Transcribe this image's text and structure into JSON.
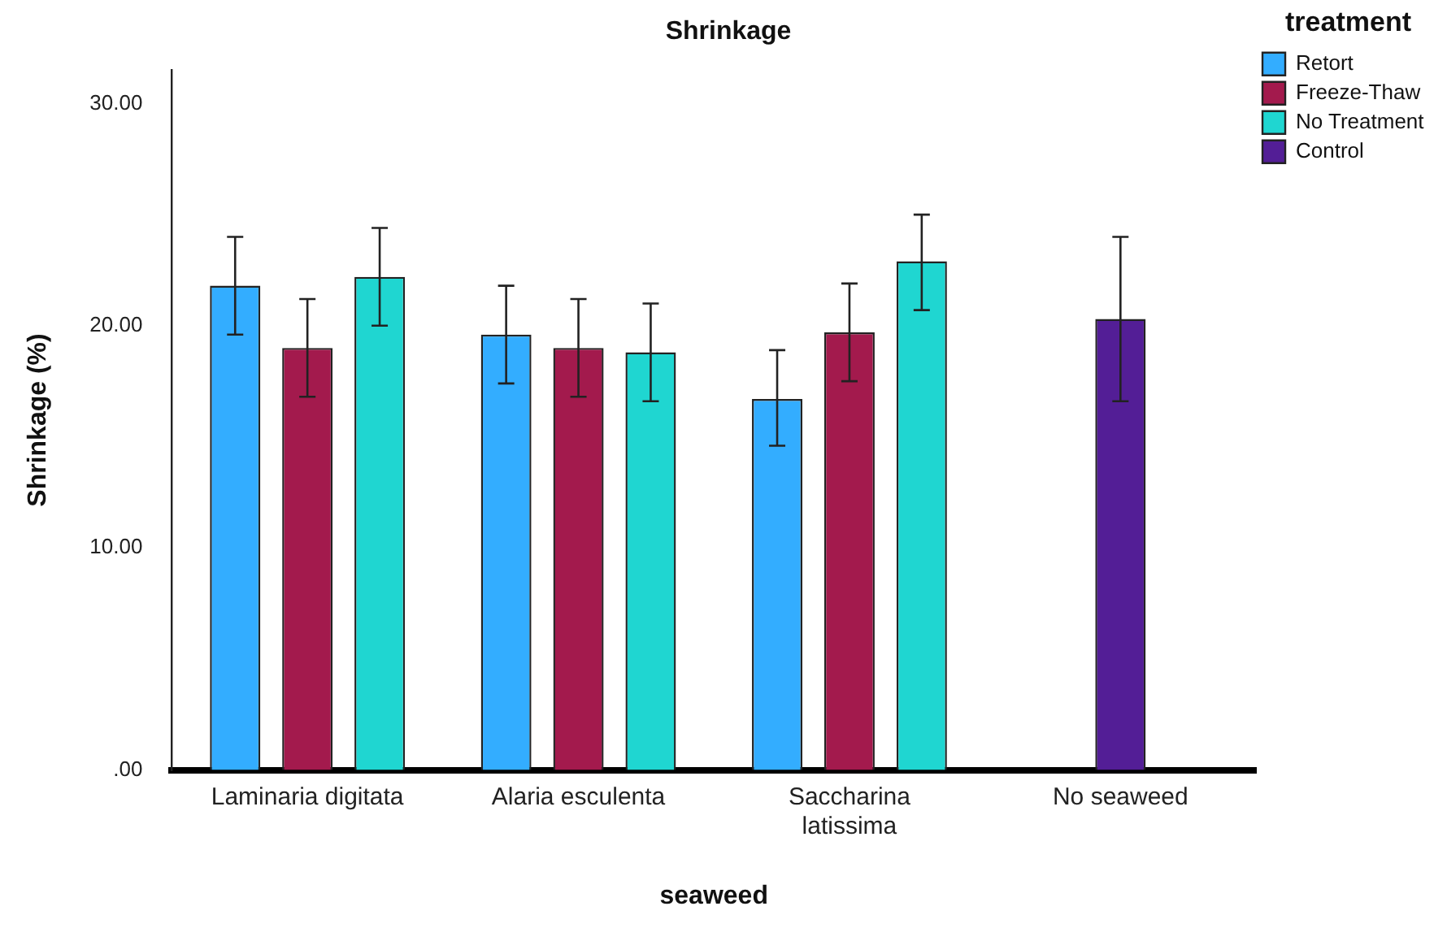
{
  "chart_data": {
    "type": "bar",
    "title": "Shrinkage",
    "xlabel": "seaweed",
    "ylabel": "Shrinkage (%)",
    "legend_title": "treatment",
    "legend": "top right",
    "categories": [
      "Laminaria digitata",
      "Alaria esculenta",
      "Saccharina latissima",
      "No seaweed"
    ],
    "series": [
      {
        "name": "Retort",
        "color": "#33adff",
        "values": [
          21.8,
          19.6,
          16.7,
          null
        ],
        "errors": [
          [
            19.6,
            24.0
          ],
          [
            17.4,
            21.8
          ],
          [
            14.6,
            18.9
          ],
          null
        ]
      },
      {
        "name": "Freeze-Thaw",
        "color": "#a31a4d",
        "values": [
          19.0,
          19.0,
          19.7,
          null
        ],
        "errors": [
          [
            16.8,
            21.2
          ],
          [
            16.8,
            21.2
          ],
          [
            17.5,
            21.9
          ],
          null
        ]
      },
      {
        "name": "No Treatment",
        "color": "#1fd6d1",
        "values": [
          22.2,
          18.8,
          22.9,
          null
        ],
        "errors": [
          [
            20.0,
            24.4
          ],
          [
            16.6,
            21.0
          ],
          [
            20.7,
            25.0
          ],
          null
        ]
      },
      {
        "name": "Control",
        "color": "#531e96",
        "values": [
          null,
          null,
          null,
          20.3
        ],
        "errors": [
          null,
          null,
          null,
          [
            16.6,
            24.0
          ]
        ]
      }
    ],
    "ylim": [
      0,
      31.5
    ],
    "yticks": [
      {
        "value": 0,
        "label": ".00"
      },
      {
        "value": 10,
        "label": "10.00"
      },
      {
        "value": 20,
        "label": "20.00"
      },
      {
        "value": 30,
        "label": "30.00"
      }
    ],
    "grid": false
  }
}
